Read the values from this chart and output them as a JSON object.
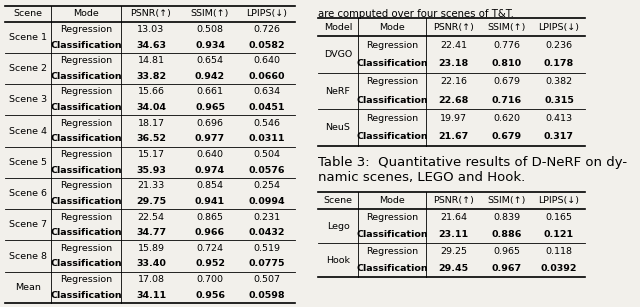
{
  "left_table": {
    "header": [
      "Scene",
      "Mode",
      "PSNR(↑)",
      "SSIM(↑)",
      "LPIPS(↓)"
    ],
    "rows": [
      [
        "Scene 1",
        "Regression",
        "13.03",
        "0.508",
        "0.726"
      ],
      [
        "Scene 1",
        "Classification",
        "34.63",
        "0.934",
        "0.0582"
      ],
      [
        "Scene 2",
        "Regression",
        "14.81",
        "0.654",
        "0.640"
      ],
      [
        "Scene 2",
        "Classification",
        "33.82",
        "0.942",
        "0.0660"
      ],
      [
        "Scene 3",
        "Regression",
        "15.66",
        "0.661",
        "0.634"
      ],
      [
        "Scene 3",
        "Classification",
        "34.04",
        "0.965",
        "0.0451"
      ],
      [
        "Scene 4",
        "Regression",
        "18.17",
        "0.696",
        "0.546"
      ],
      [
        "Scene 4",
        "Classification",
        "36.52",
        "0.977",
        "0.0311"
      ],
      [
        "Scene 5",
        "Regression",
        "15.17",
        "0.640",
        "0.504"
      ],
      [
        "Scene 5",
        "Classification",
        "35.93",
        "0.974",
        "0.0576"
      ],
      [
        "Scene 6",
        "Regression",
        "21.33",
        "0.854",
        "0.254"
      ],
      [
        "Scene 6",
        "Classification",
        "29.75",
        "0.941",
        "0.0994"
      ],
      [
        "Scene 7",
        "Regression",
        "22.54",
        "0.865",
        "0.231"
      ],
      [
        "Scene 7",
        "Classification",
        "34.77",
        "0.966",
        "0.0432"
      ],
      [
        "Scene 8",
        "Regression",
        "15.89",
        "0.724",
        "0.519"
      ],
      [
        "Scene 8",
        "Classification",
        "33.40",
        "0.952",
        "0.0775"
      ],
      [
        "Mean",
        "Regression",
        "17.08",
        "0.700",
        "0.507"
      ],
      [
        "Mean",
        "Classification",
        "34.11",
        "0.956",
        "0.0598"
      ]
    ],
    "bold_rows": [
      1,
      3,
      5,
      7,
      9,
      11,
      13,
      15,
      17
    ]
  },
  "top_right_table": {
    "header": [
      "Model",
      "Mode",
      "PSNR(↑)",
      "SSIM(↑)",
      "LPIPS(↓)"
    ],
    "rows": [
      [
        "DVGO",
        "Regression",
        "22.41",
        "0.776",
        "0.236"
      ],
      [
        "DVGO",
        "Classification",
        "23.18",
        "0.810",
        "0.178"
      ],
      [
        "NeRF",
        "Regression",
        "22.16",
        "0.679",
        "0.382"
      ],
      [
        "NeRF",
        "Classification",
        "22.68",
        "0.716",
        "0.315"
      ],
      [
        "NeuS",
        "Regression",
        "19.97",
        "0.620",
        "0.413"
      ],
      [
        "NeuS",
        "Classification",
        "21.67",
        "0.679",
        "0.317"
      ]
    ],
    "bold_rows": [
      1,
      3,
      5
    ]
  },
  "bottom_right_table": {
    "caption_line1": "Table 3:  Quantitative results of D-NeRF on dy-",
    "caption_line2": "namic scenes, LEGO and Hook.",
    "header": [
      "Scene",
      "Mode",
      "PSNR(↑)",
      "SSIM(↑)",
      "LPIPS(↓)"
    ],
    "rows": [
      [
        "Lego",
        "Regression",
        "21.64",
        "0.839",
        "0.165"
      ],
      [
        "Lego",
        "Classification",
        "23.11",
        "0.886",
        "0.121"
      ],
      [
        "Hook",
        "Regression",
        "29.25",
        "0.965",
        "0.118"
      ],
      [
        "Hook",
        "Classification",
        "29.45",
        "0.967",
        "0.0392"
      ]
    ],
    "bold_rows": [
      1,
      3
    ]
  },
  "top_right_text": "are computed over four scenes of T&T.",
  "bg_color": "#f2f0eb",
  "font_size": 6.8,
  "caption_font_size": 9.5
}
